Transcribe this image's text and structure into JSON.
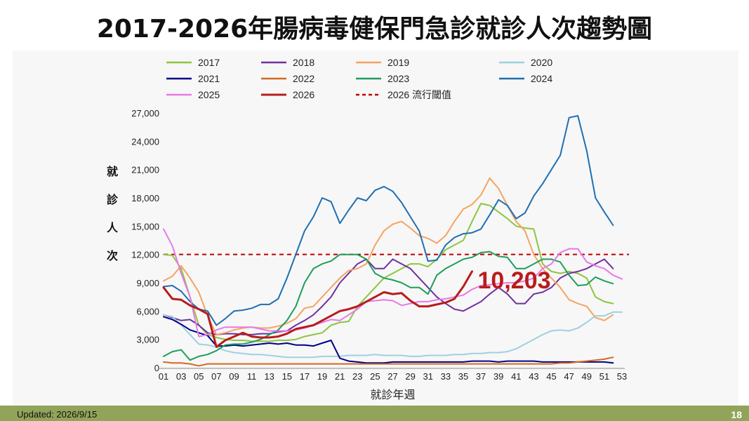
{
  "slide": {
    "title": "2017-2026年腸病毒健保門急診就診人次趨勢圖",
    "updated": "Updated: 2026/9/15",
    "page_number": "18"
  },
  "chart_data": {
    "type": "line",
    "ylabel": "就診人次",
    "xlabel": "就診年週",
    "ylim": [
      0,
      27000
    ],
    "yticks": [
      0,
      3000,
      6000,
      9000,
      12000,
      15000,
      18000,
      21000,
      24000,
      27000
    ],
    "ytick_labels": [
      "0",
      "3,000",
      "6,000",
      "9,000",
      "12,000",
      "15,000",
      "18,000",
      "21,000",
      "24,000",
      "27,000"
    ],
    "xlim": [
      1,
      53
    ],
    "xtick_labels": [
      "01",
      "03",
      "05",
      "07",
      "09",
      "11",
      "13",
      "15",
      "17",
      "19",
      "21",
      "23",
      "25",
      "27",
      "29",
      "31",
      "33",
      "35",
      "37",
      "39",
      "41",
      "43",
      "45",
      "47",
      "49",
      "51",
      "53"
    ],
    "grid": false,
    "legend_position": "top",
    "threshold": {
      "name": "2026 流行閾值",
      "value": 12000,
      "color": "#c00000",
      "style": "dashed"
    },
    "callout": {
      "text": "10,203"
    },
    "series": [
      {
        "name": "2017",
        "color": "#8cc63f",
        "width": 2,
        "x": [
          1,
          2,
          3,
          4,
          5,
          6,
          7,
          8,
          9,
          10,
          11,
          12,
          13,
          14,
          15,
          16,
          17,
          18,
          19,
          20,
          21,
          22,
          23,
          24,
          25,
          26,
          27,
          28,
          29,
          30,
          31,
          32,
          33,
          34,
          35,
          36,
          37,
          38,
          39,
          40,
          41,
          42,
          43,
          44,
          45,
          46,
          47,
          48,
          49,
          50,
          51,
          52
        ],
        "values": [
          12000,
          11900,
          10500,
          7500,
          4500,
          3500,
          3200,
          3000,
          2900,
          2900,
          2800,
          2800,
          2800,
          2900,
          2900,
          3000,
          3300,
          3500,
          3700,
          4500,
          4800,
          4900,
          6500,
          7500,
          8500,
          9500,
          10000,
          10500,
          11000,
          11000,
          10700,
          11500,
          12500,
          13000,
          13500,
          15500,
          17400,
          17200,
          16500,
          15800,
          15000,
          14800,
          14700,
          11000,
          10200,
          10000,
          10200,
          10000,
          9500,
          7500,
          7000,
          6800
        ]
      },
      {
        "name": "2018",
        "color": "#7030a0",
        "width": 2,
        "x": [
          1,
          2,
          3,
          4,
          5,
          6,
          7,
          8,
          9,
          10,
          11,
          12,
          13,
          14,
          15,
          16,
          17,
          18,
          19,
          20,
          21,
          22,
          23,
          24,
          25,
          26,
          27,
          28,
          29,
          30,
          31,
          32,
          33,
          34,
          35,
          36,
          37,
          38,
          39,
          40,
          41,
          42,
          43,
          44,
          45,
          46,
          47,
          48,
          49,
          50,
          51,
          52
        ],
        "values": [
          5600,
          5300,
          5000,
          5100,
          4500,
          3700,
          3500,
          3600,
          3600,
          3500,
          3500,
          3600,
          3600,
          3800,
          3900,
          4500,
          5000,
          5600,
          6500,
          7500,
          9000,
          10000,
          11000,
          11500,
          10500,
          10500,
          11500,
          11000,
          10500,
          9500,
          8500,
          7500,
          6800,
          6200,
          6000,
          6500,
          7000,
          7800,
          8500,
          7800,
          6800,
          6800,
          7800,
          8000,
          8500,
          9500,
          10000,
          10200,
          10500,
          11000,
          11500,
          10500
        ]
      },
      {
        "name": "2019",
        "color": "#f4a460",
        "width": 2,
        "x": [
          1,
          2,
          3,
          4,
          5,
          6,
          7,
          8,
          9,
          10,
          11,
          12,
          13,
          14,
          15,
          16,
          17,
          18,
          19,
          20,
          21,
          22,
          23,
          24,
          25,
          26,
          27,
          28,
          29,
          30,
          31,
          32,
          33,
          34,
          35,
          36,
          37,
          38,
          39,
          40,
          41,
          42,
          43,
          44,
          45,
          46,
          47,
          48,
          49,
          50,
          51,
          52
        ],
        "values": [
          9200,
          9700,
          10800,
          9500,
          8000,
          5500,
          3500,
          3700,
          4000,
          4200,
          4300,
          4200,
          4200,
          4400,
          4700,
          5200,
          6300,
          6500,
          7500,
          8500,
          9500,
          10300,
          10500,
          11000,
          13000,
          14500,
          15200,
          15500,
          14800,
          14000,
          13700,
          13200,
          14000,
          15500,
          16800,
          17300,
          18300,
          20100,
          19000,
          17200,
          15500,
          14500,
          12000,
          10500,
          9500,
          8500,
          7200,
          6800,
          6500,
          5300,
          5000,
          5600
        ]
      },
      {
        "name": "2020",
        "color": "#9fd0e0",
        "width": 2,
        "x": [
          1,
          2,
          3,
          4,
          5,
          6,
          7,
          8,
          9,
          10,
          11,
          12,
          13,
          14,
          15,
          16,
          17,
          18,
          19,
          20,
          21,
          22,
          23,
          24,
          25,
          26,
          27,
          28,
          29,
          30,
          31,
          32,
          33,
          34,
          35,
          36,
          37,
          38,
          39,
          40,
          41,
          42,
          43,
          44,
          45,
          46,
          47,
          48,
          49,
          50,
          51,
          52,
          53
        ],
        "values": [
          5600,
          5400,
          4500,
          3500,
          2500,
          2400,
          2200,
          1800,
          1600,
          1500,
          1400,
          1400,
          1300,
          1200,
          1100,
          1100,
          1100,
          1100,
          1200,
          1200,
          1200,
          1300,
          1300,
          1300,
          1400,
          1300,
          1300,
          1300,
          1200,
          1200,
          1300,
          1300,
          1300,
          1400,
          1400,
          1500,
          1500,
          1600,
          1600,
          1700,
          2000,
          2500,
          3000,
          3500,
          3900,
          4000,
          3900,
          4200,
          4800,
          5500,
          5500,
          5900,
          5900
        ]
      },
      {
        "name": "2021",
        "color": "#00008b",
        "width": 2,
        "x": [
          1,
          2,
          3,
          4,
          5,
          6,
          7,
          8,
          9,
          10,
          11,
          12,
          13,
          14,
          15,
          16,
          17,
          18,
          19,
          20,
          21,
          22,
          23,
          24,
          25,
          26,
          27,
          28,
          29,
          30,
          31,
          32,
          33,
          34,
          35,
          36,
          37,
          38,
          39,
          40,
          41,
          42,
          43,
          44,
          45,
          46,
          47,
          48,
          49,
          50,
          51,
          52
        ],
        "values": [
          5400,
          5100,
          4600,
          4000,
          3700,
          3400,
          2300,
          2300,
          2400,
          2300,
          2400,
          2500,
          2600,
          2500,
          2600,
          2400,
          2400,
          2300,
          2600,
          2900,
          1000,
          700,
          600,
          500,
          500,
          500,
          600,
          600,
          600,
          600,
          600,
          600,
          600,
          600,
          600,
          700,
          700,
          700,
          600,
          700,
          700,
          700,
          700,
          600,
          600,
          600,
          600,
          600,
          600,
          600,
          600,
          500
        ]
      },
      {
        "name": "2022",
        "color": "#d2691e",
        "width": 2,
        "x": [
          1,
          2,
          3,
          4,
          5,
          6,
          7,
          8,
          9,
          10,
          11,
          12,
          13,
          14,
          15,
          16,
          17,
          18,
          19,
          20,
          21,
          22,
          23,
          24,
          25,
          26,
          27,
          28,
          29,
          30,
          31,
          32,
          33,
          34,
          35,
          36,
          37,
          38,
          39,
          40,
          41,
          42,
          43,
          44,
          45,
          46,
          47,
          48,
          49,
          50,
          51,
          52
        ],
        "values": [
          600,
          500,
          500,
          400,
          200,
          400,
          400,
          400,
          400,
          400,
          400,
          400,
          400,
          400,
          400,
          400,
          400,
          400,
          400,
          400,
          400,
          400,
          400,
          400,
          400,
          400,
          400,
          400,
          400,
          400,
          400,
          400,
          400,
          400,
          400,
          400,
          400,
          400,
          400,
          400,
          400,
          400,
          400,
          400,
          400,
          500,
          500,
          600,
          700,
          800,
          900,
          1100
        ]
      },
      {
        "name": "2023",
        "color": "#1e9e5a",
        "width": 2,
        "x": [
          1,
          2,
          3,
          4,
          5,
          6,
          7,
          8,
          9,
          10,
          11,
          12,
          13,
          14,
          15,
          16,
          17,
          18,
          19,
          20,
          21,
          22,
          23,
          24,
          25,
          26,
          27,
          28,
          29,
          30,
          31,
          32,
          33,
          34,
          35,
          36,
          37,
          38,
          39,
          40,
          41,
          42,
          43,
          44,
          45,
          46,
          47,
          48,
          49,
          50,
          51,
          52
        ],
        "values": [
          1200,
          1700,
          1900,
          800,
          1200,
          1400,
          1800,
          2400,
          2500,
          2500,
          2700,
          3000,
          3500,
          4000,
          5000,
          6500,
          9000,
          10500,
          11000,
          11300,
          12000,
          12000,
          12000,
          11500,
          10000,
          9500,
          9300,
          9000,
          8500,
          8500,
          7800,
          9800,
          10500,
          11000,
          11500,
          11700,
          12200,
          12300,
          11800,
          11700,
          10500,
          10500,
          11000,
          11500,
          11500,
          11200,
          9800,
          8700,
          8800,
          9600,
          9200,
          8900
        ]
      },
      {
        "name": "2024",
        "color": "#1f6fb2",
        "width": 2,
        "x": [
          1,
          2,
          3,
          4,
          5,
          6,
          7,
          8,
          9,
          10,
          11,
          12,
          13,
          14,
          15,
          16,
          17,
          18,
          19,
          20,
          21,
          22,
          23,
          24,
          25,
          26,
          27,
          28,
          29,
          30,
          31,
          32,
          33,
          34,
          35,
          36,
          37,
          38,
          39,
          40,
          41,
          42,
          43,
          44,
          45,
          46,
          47,
          48,
          49,
          50,
          51,
          52
        ],
        "values": [
          8600,
          8700,
          8100,
          7000,
          6200,
          6000,
          4500,
          5200,
          6000,
          6100,
          6300,
          6700,
          6700,
          7300,
          9500,
          12000,
          14500,
          16000,
          18000,
          17600,
          15300,
          16700,
          18000,
          17700,
          18800,
          19200,
          18700,
          17500,
          16000,
          14500,
          11300,
          11400,
          13000,
          13800,
          14200,
          14300,
          14700,
          16200,
          17800,
          17200,
          15800,
          16400,
          18200,
          19500,
          21000,
          22500,
          26500,
          26700,
          23000,
          18000,
          16500,
          15100
        ]
      },
      {
        "name": "2025",
        "color": "#e879e8",
        "width": 2,
        "x": [
          1,
          2,
          3,
          4,
          5,
          6,
          7,
          8,
          9,
          10,
          11,
          12,
          13,
          14,
          15,
          16,
          17,
          18,
          19,
          20,
          21,
          22,
          23,
          24,
          25,
          26,
          27,
          28,
          29,
          30,
          31,
          32,
          33,
          34,
          35,
          36,
          37,
          38,
          39,
          40,
          41,
          42,
          43,
          44,
          45,
          46,
          47,
          48,
          49,
          50,
          51,
          52,
          53
        ],
        "values": [
          14700,
          12900,
          10000,
          7500,
          3300,
          3500,
          4000,
          4300,
          4300,
          4300,
          4300,
          4100,
          3900,
          3900,
          3900,
          4000,
          4200,
          4500,
          4800,
          5100,
          5000,
          5600,
          6200,
          7000,
          7100,
          7200,
          7100,
          6600,
          6800,
          7000,
          7000,
          7200,
          7300,
          7500,
          7700,
          8300,
          8700,
          8800,
          8900,
          9000,
          9000,
          9200,
          9500,
          10500,
          11000,
          12200,
          12600,
          12600,
          11200,
          10800,
          10500,
          9800,
          9400
        ]
      },
      {
        "name": "2026",
        "color": "#b81c1c",
        "width": 3,
        "x": [
          1,
          2,
          3,
          4,
          5,
          6,
          7,
          8,
          9,
          10,
          11,
          12,
          13,
          14,
          15,
          16,
          17,
          18,
          19,
          20,
          21,
          22,
          23,
          24,
          25,
          26,
          27,
          28,
          29,
          30,
          31,
          32,
          33,
          34,
          35,
          36
        ],
        "values": [
          8500,
          7300,
          7200,
          6600,
          6200,
          5700,
          2200,
          2900,
          3300,
          3700,
          3300,
          3200,
          3200,
          3300,
          3600,
          4100,
          4300,
          4500,
          5000,
          5500,
          6000,
          6200,
          6500,
          7000,
          7500,
          8000,
          7800,
          7900,
          7100,
          6500,
          6500,
          6700,
          6900,
          7300,
          8600,
          10203
        ]
      }
    ]
  }
}
